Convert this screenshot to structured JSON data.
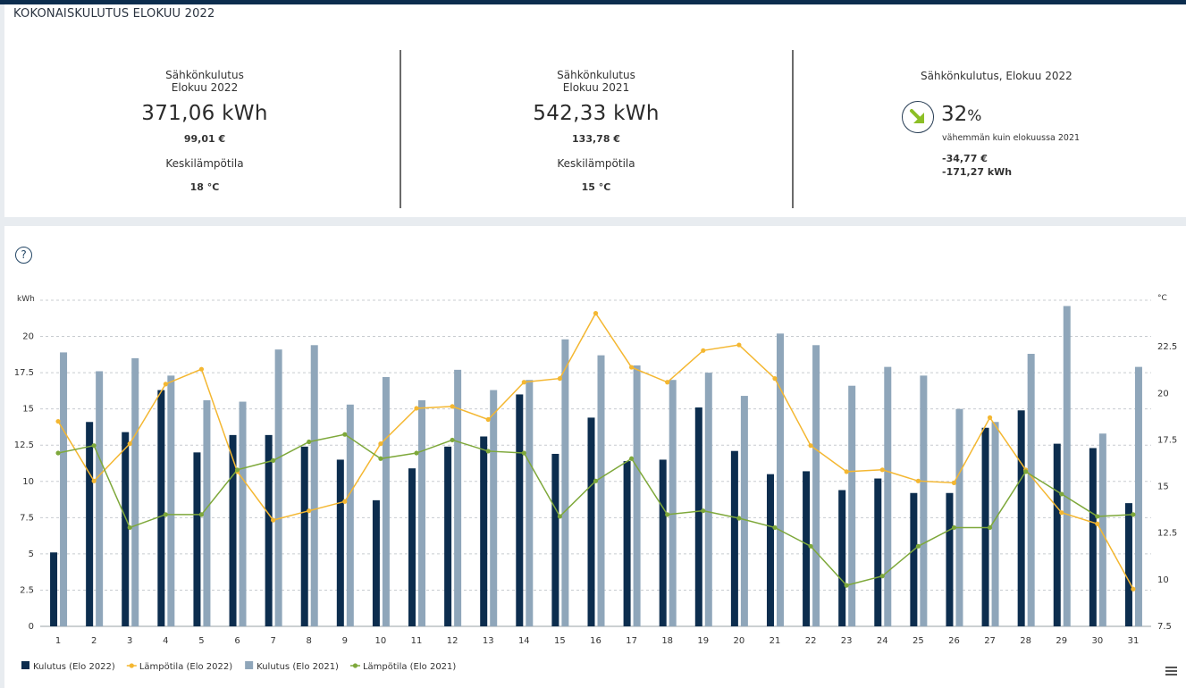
{
  "header": {
    "title": "KOKONAISKULUTUS ELOKUU 2022"
  },
  "kpi_current": {
    "label_line1": "Sähkönkulutus",
    "label_line2": "Elokuu 2022",
    "kwh": "371,06 kWh",
    "euros": "99,01 €",
    "temp_label": "Keskilämpötila",
    "temp_value": "18 °C"
  },
  "kpi_previous": {
    "label_line1": "Sähkönkulutus",
    "label_line2": "Elokuu 2021",
    "kwh": "542,33 kWh",
    "euros": "133,78 €",
    "temp_label": "Keskilämpötila",
    "temp_value": "15 °C"
  },
  "comparison": {
    "title": "Sähkönkulutus, Elokuu 2022",
    "percent": "32",
    "percent_sign": "%",
    "description": "vähemmän kuin elokuussa 2021",
    "delta_euros": "-34,77 €",
    "delta_kwh": "-171,27 kWh",
    "arrow_icon": "arrow-down-right-icon",
    "arrow_color": "#8cbf26"
  },
  "help_icon": "question-circle-icon",
  "menu_icon": "hamburger-menu-icon",
  "chart_data": {
    "type": "bar",
    "categories": [
      "1",
      "2",
      "3",
      "4",
      "5",
      "6",
      "7",
      "8",
      "9",
      "10",
      "11",
      "12",
      "13",
      "14",
      "15",
      "16",
      "17",
      "18",
      "19",
      "20",
      "21",
      "22",
      "23",
      "24",
      "25",
      "26",
      "27",
      "28",
      "29",
      "30",
      "31"
    ],
    "y_left": {
      "label": "kWh",
      "min": 0,
      "max": 22.5,
      "ticks": [
        "0",
        "2.5",
        "5",
        "7.5",
        "10",
        "12.5",
        "15",
        "17.5",
        "20"
      ]
    },
    "y_right": {
      "label": "°C",
      "min": 7.5,
      "max": 25,
      "ticks": [
        "7.5",
        "10",
        "12.5",
        "15",
        "17.5",
        "20",
        "22.5"
      ]
    },
    "grid": true,
    "legend_position": "bottom-left",
    "series": [
      {
        "name": "Kulutus (Elo 2022)",
        "kind": "bar",
        "axis": "left",
        "color": "#0c2d4e",
        "values": [
          5.1,
          14.1,
          13.4,
          16.3,
          12.0,
          13.2,
          13.2,
          12.4,
          11.5,
          8.7,
          10.9,
          12.4,
          13.1,
          16.0,
          11.9,
          14.4,
          11.4,
          11.5,
          15.1,
          12.1,
          10.5,
          10.7,
          9.4,
          10.2,
          9.2,
          9.2,
          13.7,
          14.9,
          12.6,
          12.3,
          8.5
        ]
      },
      {
        "name": "Lämpötila (Elo 2022)",
        "kind": "line",
        "axis": "right",
        "color": "#f4b731",
        "values": [
          18.5,
          15.3,
          17.3,
          20.5,
          21.3,
          15.8,
          13.2,
          13.7,
          14.2,
          17.3,
          19.2,
          19.3,
          18.6,
          20.6,
          20.8,
          24.3,
          21.4,
          20.6,
          22.3,
          22.6,
          20.8,
          17.2,
          15.8,
          15.9,
          15.3,
          15.2,
          18.7,
          15.9,
          13.6,
          13.0,
          9.5
        ]
      },
      {
        "name": "Kulutus (Elo 2021)",
        "kind": "bar",
        "axis": "left",
        "color": "#8fa6ba",
        "values": [
          18.9,
          17.6,
          18.5,
          17.3,
          15.6,
          15.5,
          19.1,
          19.4,
          15.3,
          17.2,
          15.6,
          17.7,
          16.3,
          17.0,
          19.8,
          18.7,
          18.0,
          17.0,
          17.5,
          15.9,
          20.2,
          19.4,
          16.6,
          17.9,
          17.3,
          15.0,
          14.1,
          18.8,
          22.1,
          13.3,
          17.9
        ]
      },
      {
        "name": "Lämpötila (Elo 2021)",
        "kind": "line",
        "axis": "right",
        "color": "#7ea83a",
        "values": [
          16.8,
          17.2,
          12.8,
          13.5,
          13.5,
          15.9,
          16.4,
          17.4,
          17.8,
          16.5,
          16.8,
          17.5,
          16.9,
          16.8,
          13.4,
          15.3,
          16.5,
          13.5,
          13.7,
          13.3,
          12.8,
          11.8,
          9.7,
          10.2,
          11.8,
          12.8,
          12.8,
          15.8,
          14.6,
          13.4,
          13.5
        ]
      }
    ]
  }
}
